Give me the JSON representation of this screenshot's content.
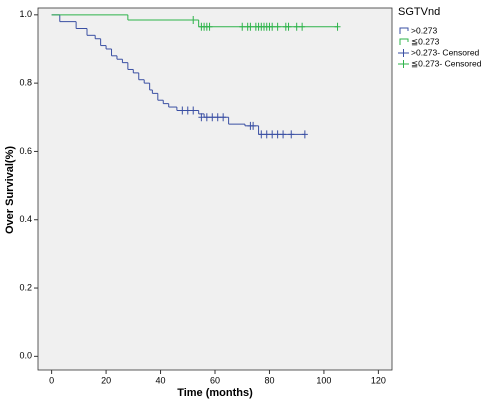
{
  "chart_data": {
    "type": "km",
    "xlabel": "Time (months)",
    "ylabel": "Over Survival(%)",
    "legend_title": "SGTVnd",
    "xlim": [
      -5,
      125
    ],
    "ylim": [
      -0.04,
      1.02
    ],
    "xticks": [
      0,
      20,
      40,
      60,
      80,
      100,
      120
    ],
    "yticks": [
      {
        "value": 0,
        "label": "0.0"
      },
      0.2,
      0.4,
      0.6,
      0.8,
      {
        "value": 1,
        "label": "1.0"
      }
    ],
    "legend": "right",
    "series": [
      {
        "name": ">0.273",
        "color": "#3a4fa3",
        "mark": "step",
        "x": [
          0,
          3,
          9,
          13,
          16,
          18,
          20,
          22,
          24,
          26,
          28,
          30,
          32,
          34,
          36,
          37,
          39,
          41,
          43,
          46,
          54,
          56,
          65,
          71,
          76,
          93
        ],
        "values": [
          1.0,
          0.98,
          0.96,
          0.94,
          0.93,
          0.91,
          0.9,
          0.88,
          0.87,
          0.86,
          0.84,
          0.83,
          0.81,
          0.8,
          0.78,
          0.77,
          0.75,
          0.74,
          0.73,
          0.72,
          0.71,
          0.7,
          0.68,
          0.675,
          0.65,
          0.65
        ]
      },
      {
        "name": "≦0.273",
        "color": "#2eb34a",
        "mark": "step",
        "x": [
          0,
          28,
          54,
          105
        ],
        "values": [
          1.0,
          0.985,
          0.965,
          0.965
        ]
      },
      {
        "name": ">0.273- Censored",
        "color": "#3a4fa3",
        "mark": "censor",
        "x": [
          48,
          50,
          52,
          55,
          57,
          59,
          61,
          63,
          73,
          74,
          77,
          79,
          81,
          83,
          85,
          88,
          93
        ],
        "values": [
          0.72,
          0.72,
          0.72,
          0.7,
          0.7,
          0.7,
          0.7,
          0.7,
          0.675,
          0.675,
          0.65,
          0.65,
          0.65,
          0.65,
          0.65,
          0.65,
          0.65
        ]
      },
      {
        "name": "≦0.273- Censored",
        "color": "#2eb34a",
        "mark": "censor",
        "x": [
          52,
          55,
          56,
          57,
          58,
          70,
          72,
          73,
          75,
          76,
          77,
          78,
          79,
          80,
          81,
          83,
          86,
          87,
          90,
          92,
          105
        ],
        "values": [
          0.985,
          0.965,
          0.965,
          0.965,
          0.965,
          0.965,
          0.965,
          0.965,
          0.965,
          0.965,
          0.965,
          0.965,
          0.965,
          0.965,
          0.965,
          0.965,
          0.965,
          0.965,
          0.965,
          0.965,
          0.965
        ]
      }
    ]
  }
}
